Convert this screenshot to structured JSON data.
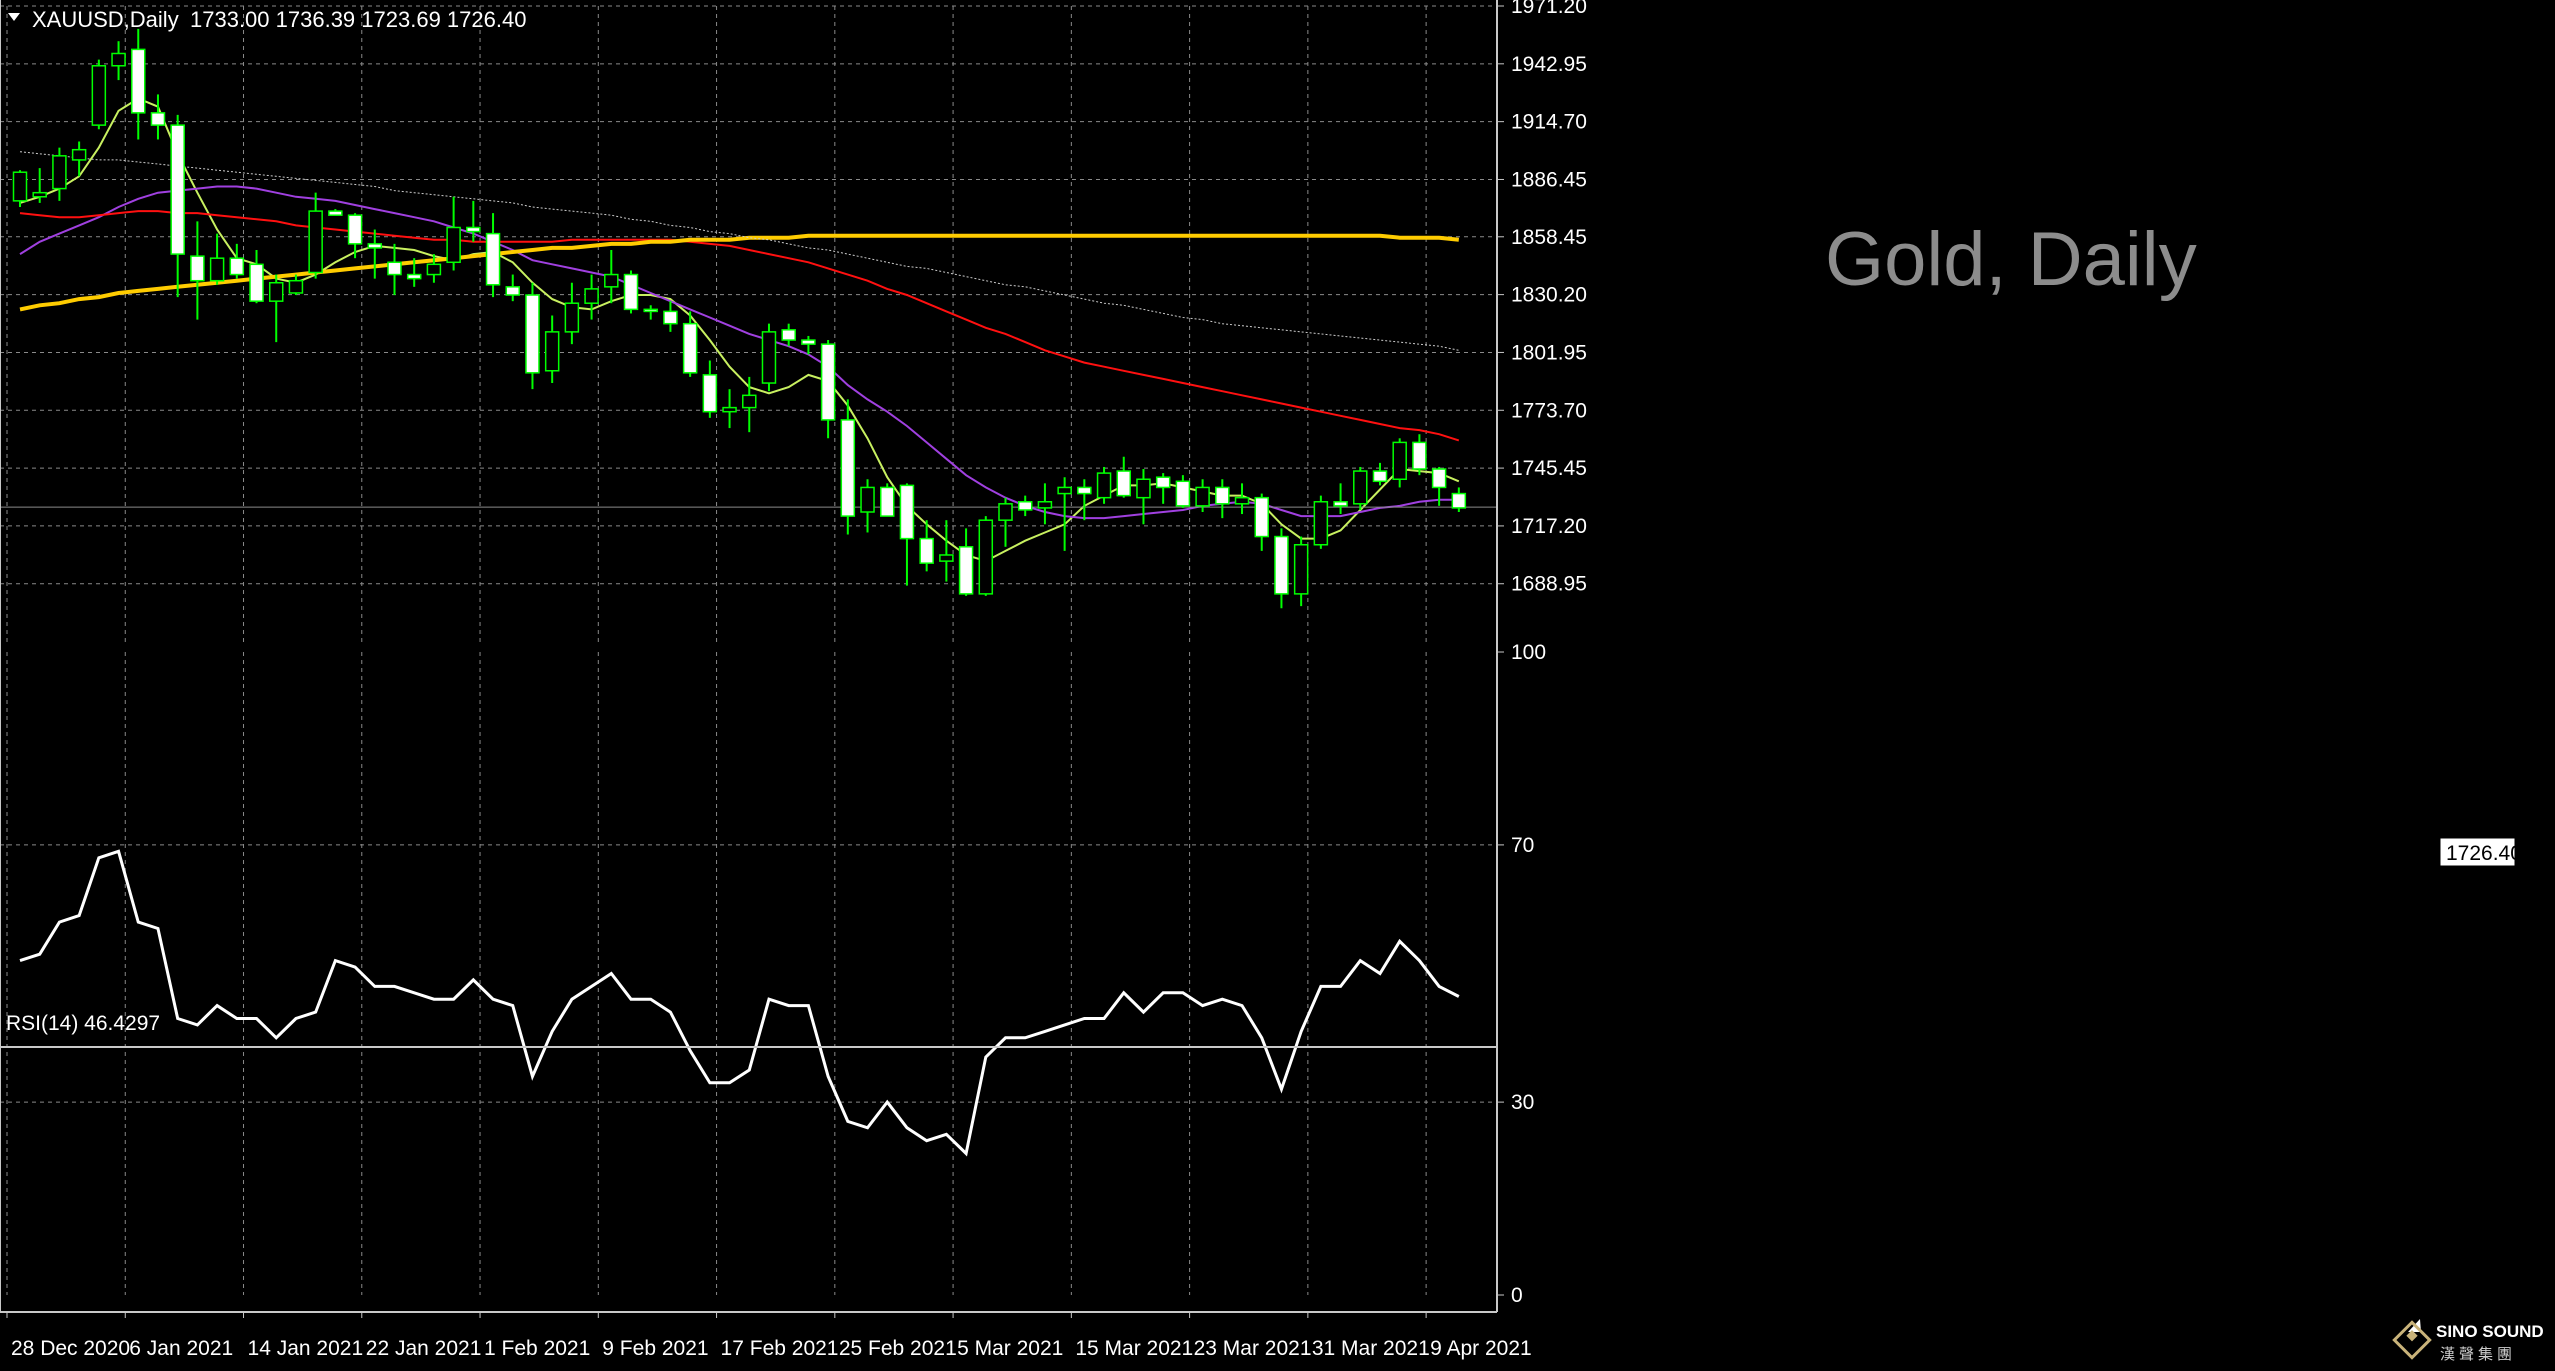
{
  "header": {
    "symbol": "XAUUSD,Daily",
    "ohlc": "1733.00 1736.39 1723.69 1726.40"
  },
  "watermark": "Gold, Daily",
  "current_price_label": "1726.40",
  "rsi_label": "RSI(14) 46.4297",
  "logo": {
    "name": "SINO SOUND",
    "chinese": "漢聲集團"
  },
  "colors": {
    "background": "#000000",
    "grid": "#8a8a8a",
    "candle_up": "#000000",
    "candle_down": "#ffffff",
    "candle_border": "#00ff00",
    "ma_fast": "#c8f060",
    "ma_mid": "#a040e0",
    "ma_slow": "#ff1010",
    "ma_long": "#ffcc00",
    "ma_200": "#cccccc",
    "rsi_line": "#ffffff"
  },
  "chart_data": [
    {
      "type": "candlestick",
      "symbol": "XAUUSD",
      "timeframe": "Daily",
      "ylim": [
        1660,
        1971.2
      ],
      "y_ticks": [
        "1971.20",
        "1942.95",
        "1914.70",
        "1886.45",
        "1858.45",
        "1830.20",
        "1801.95",
        "1773.70",
        "1745.45",
        "1717.20",
        "1688.95"
      ],
      "x_tick_labels": [
        "28 Dec 2020",
        "6 Jan 2021",
        "14 Jan 2021",
        "22 Jan 2021",
        "1 Feb 2021",
        "9 Feb 2021",
        "17 Feb 2021",
        "25 Feb 2021",
        "5 Mar 2021",
        "15 Mar 2021",
        "23 Mar 2021",
        "31 Mar 2021",
        "9 Apr 2021"
      ],
      "x_tick_indices": [
        0,
        6,
        12,
        18,
        24,
        30,
        36,
        42,
        48,
        54,
        60,
        66,
        72
      ],
      "current_price": 1726.4,
      "candles": [
        [
          1876,
          1891,
          1873,
          1890
        ],
        [
          1878,
          1892,
          1875,
          1880
        ],
        [
          1882,
          1902,
          1876,
          1898
        ],
        [
          1896,
          1905,
          1888,
          1901
        ],
        [
          1913,
          1945,
          1911,
          1942
        ],
        [
          1942,
          1954,
          1935,
          1948
        ],
        [
          1950,
          1960,
          1906,
          1919
        ],
        [
          1919,
          1928,
          1906,
          1913
        ],
        [
          1913,
          1918,
          1829,
          1850
        ],
        [
          1849,
          1866,
          1818,
          1837
        ],
        [
          1837,
          1860,
          1835,
          1848
        ],
        [
          1848,
          1855,
          1838,
          1840
        ],
        [
          1845,
          1852,
          1826,
          1827
        ],
        [
          1827,
          1840,
          1807,
          1836
        ],
        [
          1831,
          1840,
          1830,
          1837
        ],
        [
          1841,
          1880,
          1838,
          1871
        ],
        [
          1871,
          1872,
          1869,
          1869
        ],
        [
          1869,
          1870,
          1848,
          1855
        ],
        [
          1855,
          1862,
          1838,
          1853
        ],
        [
          1846,
          1855,
          1830,
          1840
        ],
        [
          1840,
          1848,
          1834,
          1838
        ],
        [
          1840,
          1850,
          1836,
          1845
        ],
        [
          1846,
          1878,
          1842,
          1863
        ],
        [
          1863,
          1876,
          1856,
          1861
        ],
        [
          1860,
          1870,
          1829,
          1835
        ],
        [
          1834,
          1840,
          1827,
          1830
        ],
        [
          1830,
          1836,
          1784,
          1792
        ],
        [
          1793,
          1820,
          1787,
          1812
        ],
        [
          1812,
          1836,
          1806,
          1826
        ],
        [
          1826,
          1840,
          1818,
          1833
        ],
        [
          1834,
          1852,
          1826,
          1840
        ],
        [
          1840,
          1842,
          1821,
          1823
        ],
        [
          1823,
          1825,
          1818,
          1822
        ],
        [
          1822,
          1827,
          1812,
          1816
        ],
        [
          1816,
          1822,
          1790,
          1792
        ],
        [
          1791,
          1798,
          1770,
          1773
        ],
        [
          1773,
          1784,
          1765,
          1775
        ],
        [
          1775,
          1790,
          1763,
          1781
        ],
        [
          1787,
          1816,
          1783,
          1812
        ],
        [
          1813,
          1816,
          1805,
          1808
        ],
        [
          1808,
          1810,
          1801,
          1806
        ],
        [
          1806,
          1808,
          1760,
          1769
        ],
        [
          1769,
          1779,
          1713,
          1722
        ],
        [
          1724,
          1740,
          1714,
          1736
        ],
        [
          1736,
          1738,
          1722,
          1722
        ],
        [
          1737,
          1738,
          1688,
          1711
        ],
        [
          1711,
          1720,
          1695,
          1699
        ],
        [
          1700,
          1720,
          1690,
          1703
        ],
        [
          1707,
          1716,
          1683,
          1684
        ],
        [
          1684,
          1722,
          1683,
          1720
        ],
        [
          1720,
          1731,
          1707,
          1728
        ],
        [
          1729,
          1732,
          1722,
          1725
        ],
        [
          1726,
          1738,
          1718,
          1729
        ],
        [
          1733,
          1741,
          1705,
          1736
        ],
        [
          1736,
          1740,
          1720,
          1733
        ],
        [
          1731,
          1746,
          1728,
          1743
        ],
        [
          1744,
          1751,
          1731,
          1732
        ],
        [
          1731,
          1745,
          1718,
          1740
        ],
        [
          1741,
          1743,
          1728,
          1736
        ],
        [
          1739,
          1742,
          1726,
          1727
        ],
        [
          1727,
          1740,
          1724,
          1736
        ],
        [
          1736,
          1740,
          1721,
          1728
        ],
        [
          1728,
          1738,
          1723,
          1731
        ],
        [
          1731,
          1733,
          1705,
          1712
        ],
        [
          1712,
          1716,
          1677,
          1684
        ],
        [
          1684,
          1712,
          1678,
          1708
        ],
        [
          1708,
          1732,
          1706,
          1729
        ],
        [
          1729,
          1738,
          1723,
          1727
        ],
        [
          1728,
          1746,
          1725,
          1744
        ],
        [
          1744,
          1748,
          1737,
          1739
        ],
        [
          1740,
          1760,
          1736,
          1758
        ],
        [
          1758,
          1762,
          1742,
          1745
        ],
        [
          1745,
          1746,
          1727,
          1736
        ],
        [
          1733,
          1736,
          1724,
          1726
        ]
      ],
      "moving_averages": [
        {
          "color": "#c8f060",
          "values": [
            1875,
            1878,
            1882,
            1888,
            1902,
            1920,
            1926,
            1922,
            1899,
            1880,
            1862,
            1848,
            1845,
            1838,
            1836,
            1840,
            1846,
            1851,
            1854,
            1853,
            1852,
            1849,
            1847,
            1850,
            1851,
            1846,
            1836,
            1828,
            1824,
            1823,
            1827,
            1830,
            1830,
            1828,
            1820,
            1808,
            1795,
            1785,
            1782,
            1785,
            1791,
            1788,
            1776,
            1760,
            1741,
            1727,
            1718,
            1710,
            1703,
            1700,
            1705,
            1710,
            1714,
            1718,
            1727,
            1732,
            1737,
            1737,
            1738,
            1736,
            1734,
            1732,
            1732,
            1728,
            1718,
            1711,
            1711,
            1715,
            1725,
            1735,
            1745,
            1744,
            1743,
            1739
          ]
        },
        {
          "color": "#a040e0",
          "values": [
            1850,
            1856,
            1860,
            1864,
            1868,
            1873,
            1877,
            1880,
            1881,
            1882,
            1883,
            1883,
            1882,
            1880,
            1878,
            1877,
            1876,
            1874,
            1872,
            1870,
            1868,
            1866,
            1863,
            1860,
            1856,
            1852,
            1847,
            1845,
            1843,
            1841,
            1839,
            1835,
            1831,
            1827,
            1823,
            1819,
            1815,
            1811,
            1808,
            1805,
            1801,
            1795,
            1786,
            1779,
            1773,
            1766,
            1758,
            1750,
            1742,
            1736,
            1731,
            1727,
            1724,
            1722,
            1721,
            1721,
            1722,
            1723,
            1724,
            1725,
            1727,
            1728,
            1729,
            1728,
            1725,
            1722,
            1722,
            1722,
            1724,
            1726,
            1727,
            1729,
            1730,
            1730
          ]
        },
        {
          "color": "#ff1010",
          "values": [
            1870,
            1869,
            1868,
            1868,
            1869,
            1870,
            1871,
            1871,
            1870,
            1870,
            1869,
            1868,
            1867,
            1866,
            1864,
            1863,
            1862,
            1861,
            1860,
            1859,
            1858,
            1857,
            1857,
            1856,
            1856,
            1856,
            1856,
            1856,
            1857,
            1857,
            1857,
            1857,
            1857,
            1857,
            1856,
            1855,
            1854,
            1852,
            1850,
            1848,
            1846,
            1843,
            1840,
            1837,
            1833,
            1830,
            1826,
            1822,
            1818,
            1814,
            1811,
            1807,
            1803,
            1800,
            1797,
            1795,
            1793,
            1791,
            1789,
            1787,
            1785,
            1783,
            1781,
            1779,
            1777,
            1775,
            1773,
            1771,
            1769,
            1767,
            1765,
            1764,
            1762,
            1759
          ]
        },
        {
          "color": "#ffcc00",
          "values": [
            1823,
            1825,
            1826,
            1828,
            1829,
            1831,
            1832,
            1833,
            1834,
            1835,
            1836,
            1837,
            1838,
            1839,
            1840,
            1841,
            1842,
            1843,
            1844,
            1845,
            1846,
            1847,
            1848,
            1849,
            1850,
            1851,
            1852,
            1853,
            1853,
            1854,
            1855,
            1855,
            1856,
            1856,
            1857,
            1857,
            1857,
            1858,
            1858,
            1858,
            1859,
            1859,
            1859,
            1859,
            1859,
            1859,
            1859,
            1859,
            1859,
            1859,
            1859,
            1859,
            1859,
            1859,
            1859,
            1859,
            1859,
            1859,
            1859,
            1859,
            1859,
            1859,
            1859,
            1859,
            1859,
            1859,
            1859,
            1859,
            1859,
            1859,
            1858,
            1858,
            1858,
            1857
          ]
        },
        {
          "color": "#cccccc",
          "values": [
            1900,
            1899,
            1898,
            1897,
            1896,
            1896,
            1895,
            1894,
            1893,
            1892,
            1891,
            1890,
            1889,
            1888,
            1887,
            1886,
            1885,
            1884,
            1883,
            1881,
            1880,
            1879,
            1878,
            1877,
            1876,
            1875,
            1873,
            1872,
            1871,
            1870,
            1869,
            1867,
            1866,
            1864,
            1863,
            1861,
            1860,
            1858,
            1857,
            1855,
            1853,
            1852,
            1850,
            1848,
            1846,
            1844,
            1843,
            1841,
            1839,
            1837,
            1835,
            1834,
            1832,
            1830,
            1828,
            1826,
            1825,
            1823,
            1821,
            1819,
            1818,
            1816,
            1815,
            1814,
            1813,
            1812,
            1811,
            1810,
            1809,
            1808,
            1807,
            1806,
            1805,
            1803
          ]
        }
      ]
    },
    {
      "type": "line",
      "name": "RSI(14)",
      "ylim": [
        0,
        100
      ],
      "y_ticks": [
        100,
        70,
        30,
        0
      ],
      "current_value": 46.4297,
      "values": [
        52,
        53,
        58,
        59,
        68,
        69,
        58,
        57,
        43,
        42,
        45,
        43,
        43,
        40,
        43,
        44,
        52,
        51,
        48,
        48,
        47,
        46,
        46,
        49,
        46,
        45,
        34,
        41,
        46,
        48,
        50,
        46,
        46,
        44,
        38,
        33,
        33,
        35,
        46,
        45,
        45,
        34,
        27,
        26,
        30,
        26,
        24,
        25,
        22,
        37,
        40,
        40,
        41,
        42,
        43,
        43,
        47,
        44,
        47,
        47,
        45,
        46,
        45,
        40,
        32,
        41,
        48,
        48,
        52,
        50,
        55,
        52,
        48,
        46.4297
      ]
    }
  ]
}
